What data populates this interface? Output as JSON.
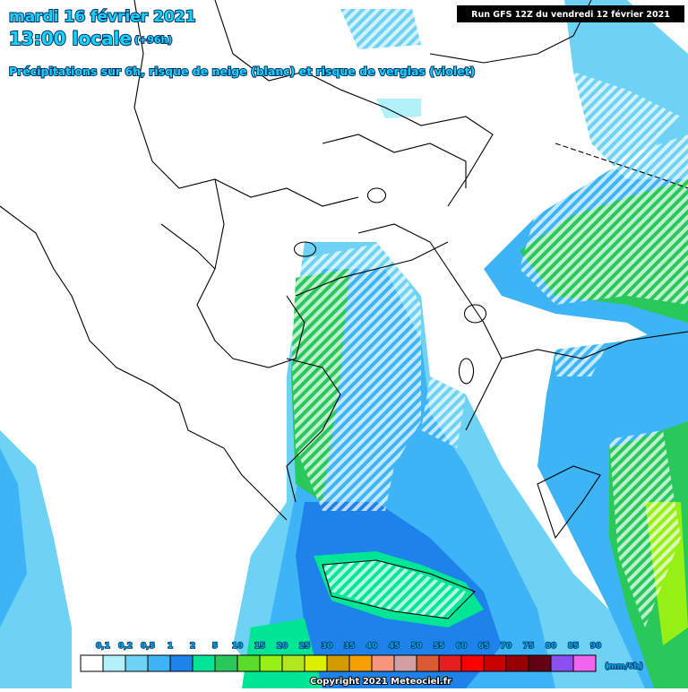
{
  "header": {
    "date": "mardi 16 février 2021",
    "time": "13:00 locale",
    "lead": "(+96h)",
    "subtitle": "Précipitations sur 6h, risque de neige (blanc) et risque de verglas (violet)",
    "run": "Run GFS 12Z du vendredi 12 février 2021"
  },
  "legend": {
    "unit": "(mm/6h)",
    "items": [
      {
        "label": "0,1",
        "color": "#ffffff"
      },
      {
        "label": "0,2",
        "color": "#b4f0fa"
      },
      {
        "label": "0,5",
        "color": "#6ed2f5"
      },
      {
        "label": "1",
        "color": "#3cb4f5"
      },
      {
        "label": "2",
        "color": "#1e82eb"
      },
      {
        "label": "5",
        "color": "#00e696"
      },
      {
        "label": "10",
        "color": "#28c85a"
      },
      {
        "label": "15",
        "color": "#5adc28"
      },
      {
        "label": "20",
        "color": "#96f014"
      },
      {
        "label": "25",
        "color": "#b4e61e"
      },
      {
        "label": "30",
        "color": "#dcf000"
      },
      {
        "label": "35",
        "color": "#d29b00"
      },
      {
        "label": "40",
        "color": "#f5a000"
      },
      {
        "label": "45",
        "color": "#f5967d"
      },
      {
        "label": "50",
        "color": "#d2a0a0"
      },
      {
        "label": "55",
        "color": "#dc5a32"
      },
      {
        "label": "60",
        "color": "#e61e1e"
      },
      {
        "label": "65",
        "color": "#ff0000"
      },
      {
        "label": "70",
        "color": "#c80000"
      },
      {
        "label": "75",
        "color": "#960000"
      },
      {
        "label": "80",
        "color": "#640014"
      },
      {
        "label": "85",
        "color": "#8c50f0"
      },
      {
        "label": "90",
        "color": "#f064f0"
      }
    ]
  },
  "footer": {
    "copyright": "Copyright 2021 Meteociel.fr"
  }
}
